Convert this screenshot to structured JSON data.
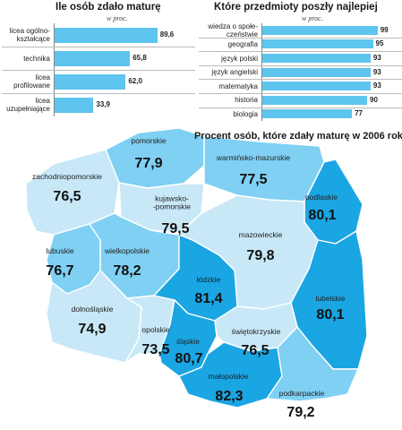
{
  "left_chart": {
    "title": "Ile osób zdało maturę",
    "unit": "w proc."
  },
  "right_chart": {
    "title": "Które przedmioty poszły najlepiej",
    "unit": "w proc."
  },
  "map": {
    "title": "Procent osób, które zdały maturę w  2006 roku"
  },
  "colors": {
    "bar": "#5ec5ee",
    "light": "#c8e8f8",
    "medium": "#7fd0f3",
    "dark": "#1aa5e3"
  },
  "chart_data": [
    {
      "type": "bar",
      "orientation": "horizontal",
      "title": "Ile osób zdało maturę",
      "unit": "w proc.",
      "categories": [
        "licea ogólno-\nkształcące",
        "technika",
        "licea\nprofilowane",
        "licea\nuzupełniające"
      ],
      "values": [
        89.6,
        65.8,
        62.0,
        33.9
      ],
      "value_labels": [
        "89,6",
        "65,8",
        "62,0",
        "33,9"
      ],
      "xlim": [
        0,
        100
      ]
    },
    {
      "type": "bar",
      "orientation": "horizontal",
      "title": "Które przedmioty poszły najlepiej",
      "unit": "w proc.",
      "categories": [
        "wiedza o społe-\nczeństwie",
        "geografia",
        "język polski",
        "język angielski",
        "matematyka",
        "historia",
        "biologia"
      ],
      "values": [
        99,
        95,
        93,
        93,
        93,
        90,
        77
      ],
      "value_labels": [
        "99",
        "95",
        "93",
        "93",
        "93",
        "90",
        "77"
      ],
      "xlim": [
        0,
        100
      ]
    },
    {
      "type": "map",
      "title": "Procent osób, które zdały maturę w  2006 roku",
      "regions": [
        {
          "name": "pomorskie",
          "value": 77.9,
          "label": "77,9"
        },
        {
          "name": "warmińsko-mazurskie",
          "value": 77.5,
          "label": "77,5"
        },
        {
          "name": "zachodniopomorskie",
          "value": 76.5,
          "label": "76,5"
        },
        {
          "name": "kujawsko-\n-pomorskie",
          "value": 79.5,
          "label": "79,5"
        },
        {
          "name": "podlaskie",
          "value": 80.1,
          "label": "80,1"
        },
        {
          "name": "lubuskie",
          "value": 76.7,
          "label": "76,7"
        },
        {
          "name": "wielkopolskie",
          "value": 78.2,
          "label": "78,2"
        },
        {
          "name": "mazowieckie",
          "value": 79.8,
          "label": "79,8"
        },
        {
          "name": "łódzkie",
          "value": 81.4,
          "label": "81,4"
        },
        {
          "name": "lubelskie",
          "value": 80.1,
          "label": "80,1"
        },
        {
          "name": "dolnośląskie",
          "value": 74.9,
          "label": "74,9"
        },
        {
          "name": "opolskie",
          "value": 73.5,
          "label": "73,5"
        },
        {
          "name": "śląskie",
          "value": 80.7,
          "label": "80,7"
        },
        {
          "name": "świętokrzyskie",
          "value": 76.5,
          "label": "76,5"
        },
        {
          "name": "małopolskie",
          "value": 82.3,
          "label": "82,3"
        },
        {
          "name": "podkarpackie",
          "value": 79.2,
          "label": "79,2"
        }
      ]
    }
  ]
}
